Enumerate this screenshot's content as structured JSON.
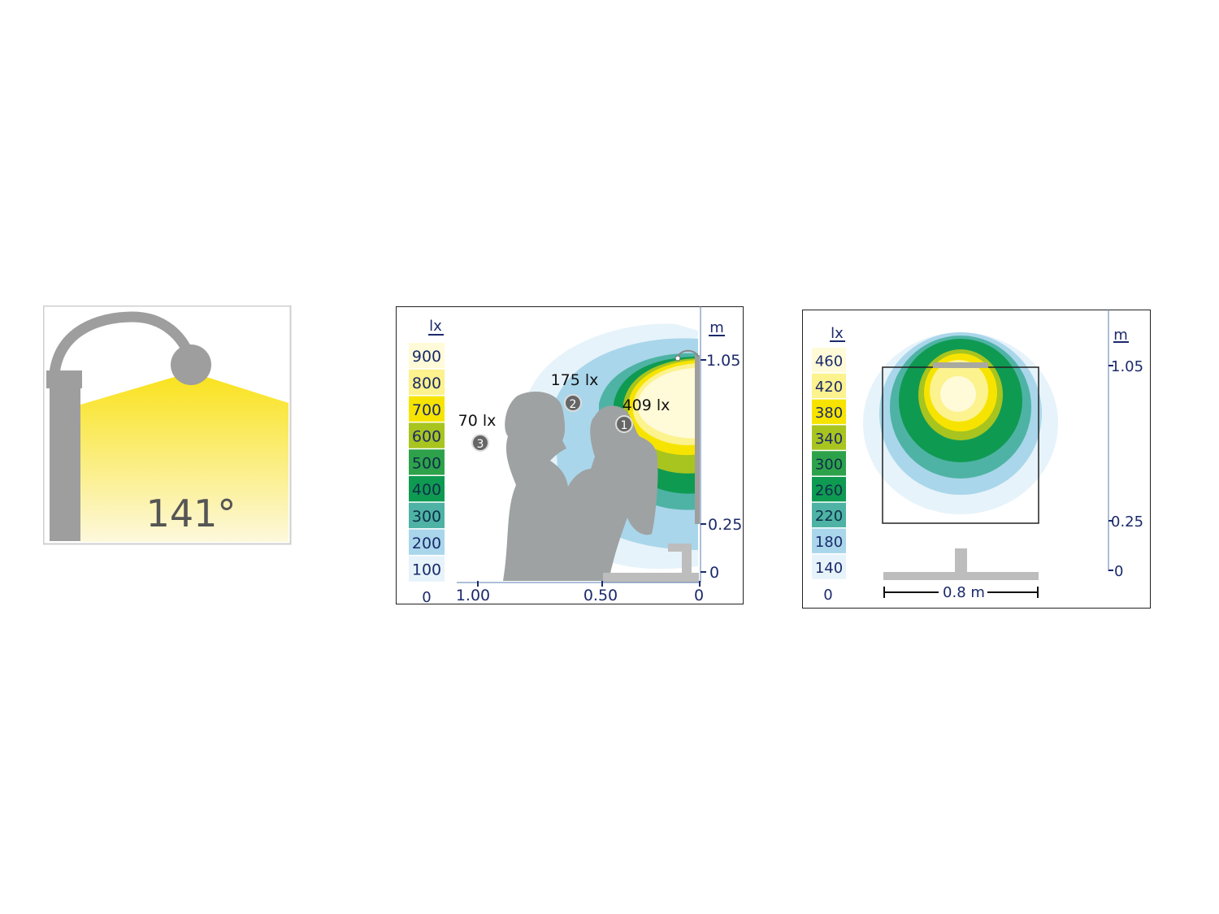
{
  "beam_panel": {
    "angle_label": "141°",
    "colors": {
      "lamp": "#9e9e9e",
      "beam_top": "#f9e21a",
      "beam_bottom": "#fdf8d8"
    }
  },
  "side_view": {
    "legend_unit": "lx",
    "axis_unit": "m",
    "legend": [
      {
        "value": "900",
        "color": "#fffbd8"
      },
      {
        "value": "800",
        "color": "#fcf28e"
      },
      {
        "value": "700",
        "color": "#f6e400"
      },
      {
        "value": "600",
        "color": "#a8c41f"
      },
      {
        "value": "500",
        "color": "#2ea24a"
      },
      {
        "value": "400",
        "color": "#0f9a52"
      },
      {
        "value": "300",
        "color": "#4eb3a4"
      },
      {
        "value": "200",
        "color": "#a9d6ea"
      },
      {
        "value": "100",
        "color": "#e6f3fa"
      }
    ],
    "legend_zero": "0",
    "y_ticks": [
      "1.05",
      "0.25",
      "0"
    ],
    "x_ticks": [
      "1.00",
      "0.50",
      "0"
    ],
    "annotations": [
      {
        "marker": "1",
        "label": "409 lx"
      },
      {
        "marker": "2",
        "label": "175 lx"
      },
      {
        "marker": "3",
        "label": "70 lx"
      }
    ]
  },
  "front_view": {
    "legend_unit": "lx",
    "axis_unit": "m",
    "legend": [
      {
        "value": "460",
        "color": "#fffbd8"
      },
      {
        "value": "420",
        "color": "#fcf28e"
      },
      {
        "value": "380",
        "color": "#f6e400"
      },
      {
        "value": "340",
        "color": "#a8c41f"
      },
      {
        "value": "300",
        "color": "#2ea24a"
      },
      {
        "value": "260",
        "color": "#0f9a52"
      },
      {
        "value": "220",
        "color": "#4eb3a4"
      },
      {
        "value": "180",
        "color": "#a9d6ea"
      },
      {
        "value": "140",
        "color": "#e6f3fa"
      }
    ],
    "legend_zero": "0",
    "y_ticks": [
      "1.05",
      "0.25",
      "0"
    ],
    "width_label": "0.8 m"
  }
}
